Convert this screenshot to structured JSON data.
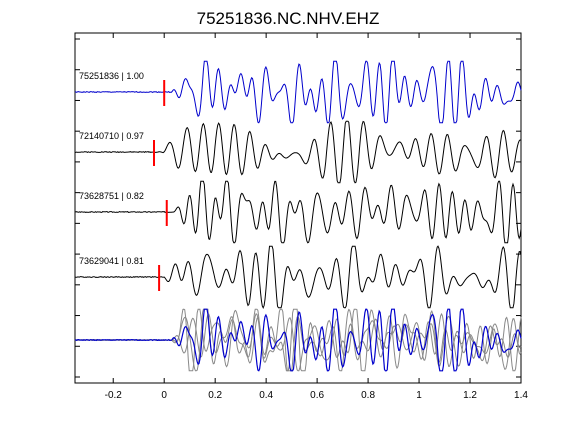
{
  "chart_data": {
    "type": "line",
    "title": "75251836.NC.NHV.EHZ",
    "xlabel": "",
    "ylabel": "",
    "xlim": [
      -0.35,
      1.4
    ],
    "x_ticks": [
      -0.2,
      0,
      0.2,
      0.4,
      0.6,
      0.8,
      1,
      1.2,
      1.4
    ],
    "x_tick_labels": [
      "-0.2",
      "0",
      "0.2",
      "0.4",
      "0.6",
      "0.8",
      "1",
      "1.2",
      "1.4"
    ],
    "grid": false,
    "colors": {
      "reference": "#0000cc",
      "trace": "#000000",
      "stack": "#888888",
      "pick": "#ff0000"
    },
    "traces": [
      {
        "label": "75251836 | 1.00",
        "pick_time": 0.0,
        "color": "#0000cc",
        "onset": 0.03,
        "seed": 1
      },
      {
        "label": "72140710 | 0.97",
        "pick_time": -0.04,
        "color": "#000000",
        "onset": -0.01,
        "seed": 2
      },
      {
        "label": "73628751 | 0.82",
        "pick_time": 0.01,
        "color": "#000000",
        "onset": 0.03,
        "seed": 3
      },
      {
        "label": "73629041 | 0.81",
        "pick_time": -0.02,
        "color": "#000000",
        "onset": 0.0,
        "seed": 4
      }
    ],
    "overlay": {
      "onset": 0.03
    }
  }
}
